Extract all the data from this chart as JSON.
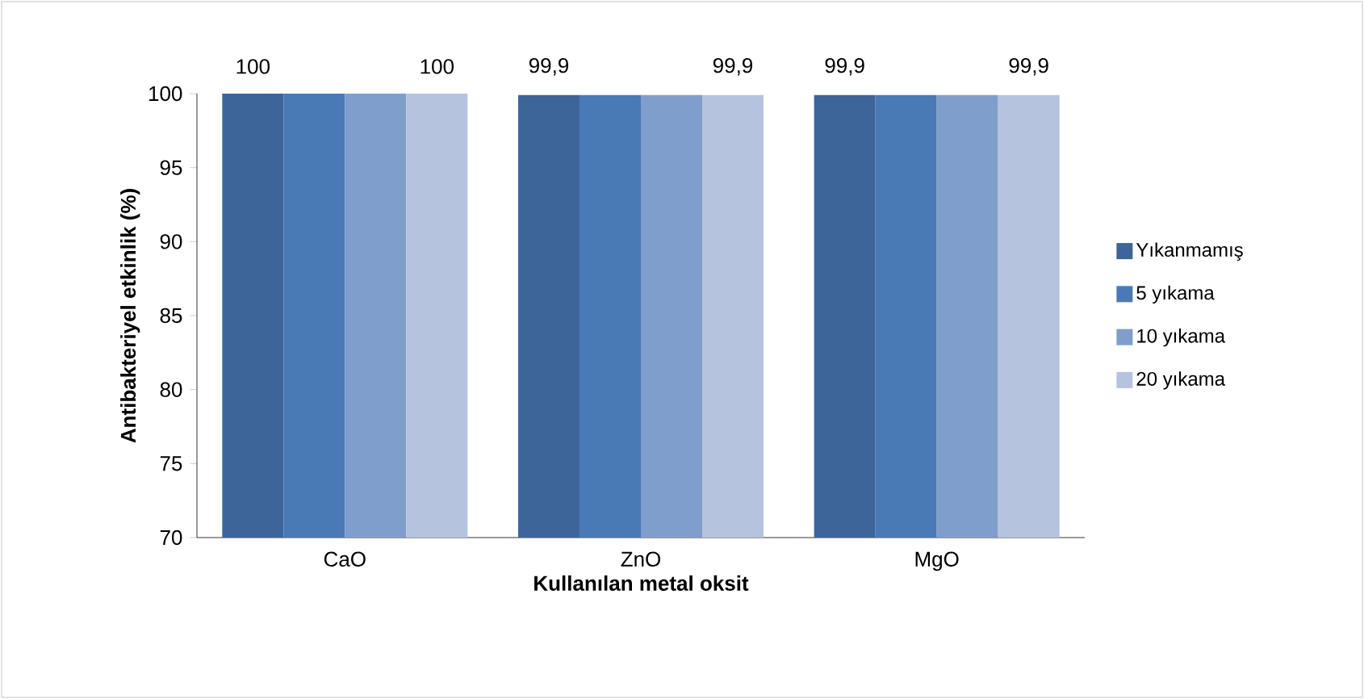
{
  "chart_data": {
    "type": "bar",
    "xlabel": "Kullanılan metal oksit",
    "ylabel": "Antibakteriyel etkinlik (%)",
    "categories": [
      "CaO",
      "ZnO",
      "MgO"
    ],
    "series": [
      {
        "name": "Yıkanmamış",
        "color": "#3d6599",
        "values": [
          100,
          99.9,
          99.9
        ],
        "value_labels": [
          "100",
          "99,9",
          "99,9"
        ]
      },
      {
        "name": "5 yıkama",
        "color": "#4a7ab5",
        "values": [
          100,
          99.9,
          99.9
        ]
      },
      {
        "name": "10 yıkama",
        "color": "#7f9ecb",
        "values": [
          100,
          99.9,
          99.9
        ]
      },
      {
        "name": "20 yıkama",
        "color": "#b5c3df",
        "values": [
          100,
          99.9,
          99.9
        ],
        "value_labels": [
          "100",
          "99,9",
          "99,9"
        ]
      }
    ],
    "ylim": [
      70,
      100
    ],
    "yticks": [
      70,
      75,
      80,
      85,
      90,
      95,
      100
    ],
    "legend": "right"
  }
}
